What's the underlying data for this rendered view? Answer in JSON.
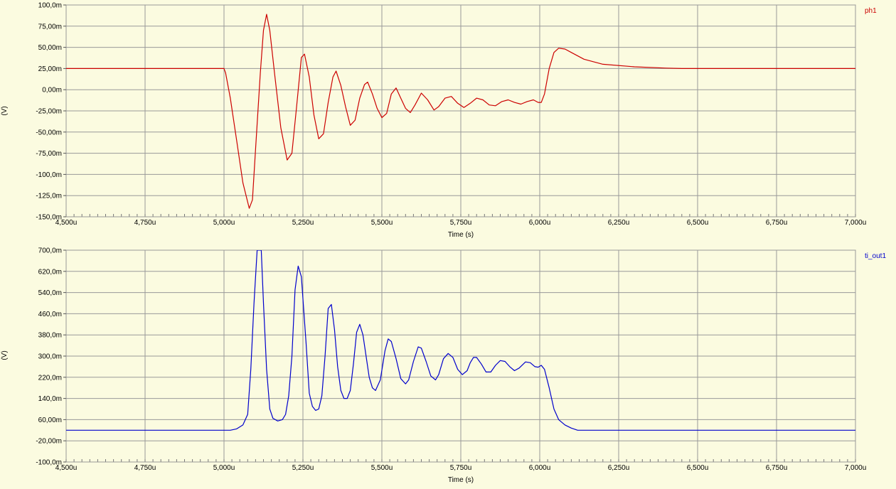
{
  "chart_data": [
    {
      "type": "line",
      "xlabel": "Time (s)",
      "ylabel": "(V)",
      "xlim": [
        4.5,
        7.0
      ],
      "ylim": [
        -150,
        100
      ],
      "grid": true,
      "legend_position": "top-right",
      "x_ticks": [
        4.5,
        4.75,
        5.0,
        5.25,
        5.5,
        5.75,
        6.0,
        6.25,
        6.5,
        6.75,
        7.0
      ],
      "x_tick_labels": [
        "4,500u",
        "4,750u",
        "5,000u",
        "5,250u",
        "5,500u",
        "5,750u",
        "6,000u",
        "6,250u",
        "6,500u",
        "6,750u",
        "7,000u"
      ],
      "y_ticks": [
        100,
        75,
        50,
        25,
        0,
        -25,
        -50,
        -75,
        -100,
        -125,
        -150
      ],
      "y_tick_labels": [
        "100,0m",
        "75,00m",
        "50,00m",
        "25,00m",
        "0,00m",
        "-25,00m",
        "-50,00m",
        "-75,00m",
        "-100,0m",
        "-125,0m",
        "-150,0m"
      ],
      "series": [
        {
          "name": "ph1",
          "color": "#cc0000",
          "points": [
            [
              4.5,
              25
            ],
            [
              5.0,
              25
            ],
            [
              5.005,
              20
            ],
            [
              5.02,
              -10
            ],
            [
              5.04,
              -60
            ],
            [
              5.06,
              -110
            ],
            [
              5.08,
              -140
            ],
            [
              5.09,
              -130
            ],
            [
              5.1,
              -70
            ],
            [
              5.115,
              20
            ],
            [
              5.125,
              70
            ],
            [
              5.135,
              89
            ],
            [
              5.145,
              70
            ],
            [
              5.16,
              20
            ],
            [
              5.18,
              -45
            ],
            [
              5.2,
              -83
            ],
            [
              5.215,
              -75
            ],
            [
              5.23,
              -20
            ],
            [
              5.245,
              38
            ],
            [
              5.255,
              42
            ],
            [
              5.27,
              15
            ],
            [
              5.285,
              -30
            ],
            [
              5.3,
              -58
            ],
            [
              5.315,
              -52
            ],
            [
              5.33,
              -15
            ],
            [
              5.345,
              15
            ],
            [
              5.355,
              22
            ],
            [
              5.37,
              5
            ],
            [
              5.385,
              -20
            ],
            [
              5.4,
              -42
            ],
            [
              5.415,
              -36
            ],
            [
              5.43,
              -10
            ],
            [
              5.445,
              6
            ],
            [
              5.455,
              9
            ],
            [
              5.47,
              -5
            ],
            [
              5.485,
              -22
            ],
            [
              5.5,
              -33
            ],
            [
              5.515,
              -28
            ],
            [
              5.53,
              -5
            ],
            [
              5.545,
              2
            ],
            [
              5.56,
              -10
            ],
            [
              5.575,
              -22
            ],
            [
              5.59,
              -27
            ],
            [
              5.605,
              -18
            ],
            [
              5.625,
              -4
            ],
            [
              5.645,
              -12
            ],
            [
              5.665,
              -24
            ],
            [
              5.68,
              -20
            ],
            [
              5.7,
              -10
            ],
            [
              5.72,
              -8
            ],
            [
              5.74,
              -16
            ],
            [
              5.76,
              -21
            ],
            [
              5.78,
              -16
            ],
            [
              5.8,
              -10
            ],
            [
              5.82,
              -12
            ],
            [
              5.84,
              -18
            ],
            [
              5.86,
              -19
            ],
            [
              5.88,
              -14
            ],
            [
              5.9,
              -12
            ],
            [
              5.92,
              -15
            ],
            [
              5.94,
              -17
            ],
            [
              5.96,
              -14
            ],
            [
              5.98,
              -12
            ],
            [
              5.995,
              -15
            ],
            [
              6.005,
              -15
            ],
            [
              6.015,
              -5
            ],
            [
              6.03,
              25
            ],
            [
              6.045,
              44
            ],
            [
              6.06,
              49
            ],
            [
              6.08,
              48
            ],
            [
              6.1,
              44
            ],
            [
              6.14,
              36
            ],
            [
              6.2,
              30
            ],
            [
              6.3,
              27
            ],
            [
              6.4,
              25.5
            ],
            [
              6.45,
              25
            ],
            [
              7.0,
              25
            ]
          ]
        }
      ]
    },
    {
      "type": "line",
      "xlabel": "Time (s)",
      "ylabel": "(V)",
      "xlim": [
        4.5,
        7.0
      ],
      "ylim": [
        -100,
        700
      ],
      "grid": true,
      "legend_position": "top-right",
      "x_ticks": [
        4.5,
        4.75,
        5.0,
        5.25,
        5.5,
        5.75,
        6.0,
        6.25,
        6.5,
        6.75,
        7.0
      ],
      "x_tick_labels": [
        "4,500u",
        "4,750u",
        "5,000u",
        "5,250u",
        "5,500u",
        "5,750u",
        "6,000u",
        "6,250u",
        "6,500u",
        "6,750u",
        "7,000u"
      ],
      "y_ticks": [
        700,
        620,
        540,
        460,
        380,
        300,
        220,
        140,
        60,
        -20,
        -100
      ],
      "y_tick_labels": [
        "700,0m",
        "620,0m",
        "540,0m",
        "460,0m",
        "380,0m",
        "300,0m",
        "220,0m",
        "140,0m",
        "60,00m",
        "-20,00m",
        "-100,0m"
      ],
      "series": [
        {
          "name": "ti_out1",
          "color": "#0000cc",
          "points": [
            [
              4.5,
              20
            ],
            [
              5.0,
              20
            ],
            [
              5.02,
              20
            ],
            [
              5.04,
              25
            ],
            [
              5.06,
              40
            ],
            [
              5.075,
              80
            ],
            [
              5.085,
              250
            ],
            [
              5.095,
              500
            ],
            [
              5.105,
              700
            ],
            [
              5.118,
              700
            ],
            [
              5.125,
              500
            ],
            [
              5.135,
              250
            ],
            [
              5.145,
              100
            ],
            [
              5.155,
              65
            ],
            [
              5.17,
              55
            ],
            [
              5.185,
              60
            ],
            [
              5.195,
              80
            ],
            [
              5.205,
              150
            ],
            [
              5.215,
              300
            ],
            [
              5.225,
              550
            ],
            [
              5.235,
              640
            ],
            [
              5.245,
              600
            ],
            [
              5.26,
              350
            ],
            [
              5.27,
              160
            ],
            [
              5.28,
              110
            ],
            [
              5.29,
              95
            ],
            [
              5.3,
              100
            ],
            [
              5.31,
              150
            ],
            [
              5.32,
              300
            ],
            [
              5.33,
              480
            ],
            [
              5.34,
              495
            ],
            [
              5.35,
              400
            ],
            [
              5.36,
              260
            ],
            [
              5.37,
              170
            ],
            [
              5.38,
              140
            ],
            [
              5.39,
              140
            ],
            [
              5.4,
              170
            ],
            [
              5.41,
              270
            ],
            [
              5.42,
              390
            ],
            [
              5.43,
              420
            ],
            [
              5.44,
              380
            ],
            [
              5.45,
              300
            ],
            [
              5.46,
              220
            ],
            [
              5.47,
              180
            ],
            [
              5.48,
              170
            ],
            [
              5.495,
              210
            ],
            [
              5.51,
              320
            ],
            [
              5.52,
              365
            ],
            [
              5.53,
              355
            ],
            [
              5.545,
              290
            ],
            [
              5.56,
              215
            ],
            [
              5.575,
              195
            ],
            [
              5.585,
              210
            ],
            [
              5.6,
              280
            ],
            [
              5.615,
              335
            ],
            [
              5.625,
              330
            ],
            [
              5.64,
              280
            ],
            [
              5.655,
              225
            ],
            [
              5.67,
              210
            ],
            [
              5.68,
              230
            ],
            [
              5.695,
              290
            ],
            [
              5.71,
              310
            ],
            [
              5.725,
              295
            ],
            [
              5.74,
              250
            ],
            [
              5.755,
              230
            ],
            [
              5.77,
              245
            ],
            [
              5.78,
              275
            ],
            [
              5.79,
              295
            ],
            [
              5.8,
              295
            ],
            [
              5.815,
              270
            ],
            [
              5.83,
              240
            ],
            [
              5.845,
              240
            ],
            [
              5.86,
              265
            ],
            [
              5.875,
              283
            ],
            [
              5.89,
              280
            ],
            [
              5.905,
              260
            ],
            [
              5.92,
              245
            ],
            [
              5.935,
              255
            ],
            [
              5.955,
              278
            ],
            [
              5.97,
              275
            ],
            [
              5.985,
              260
            ],
            [
              5.995,
              258
            ],
            [
              6.005,
              265
            ],
            [
              6.015,
              250
            ],
            [
              6.03,
              180
            ],
            [
              6.045,
              100
            ],
            [
              6.06,
              60
            ],
            [
              6.08,
              40
            ],
            [
              6.1,
              28
            ],
            [
              6.12,
              20
            ],
            [
              7.0,
              20
            ]
          ]
        }
      ]
    }
  ]
}
